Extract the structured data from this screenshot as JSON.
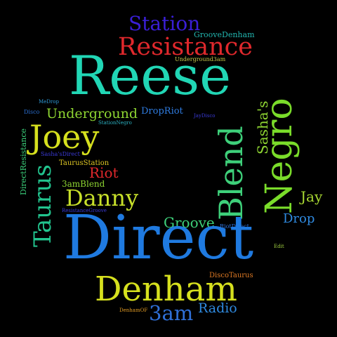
{
  "words": [
    {
      "id": "station",
      "text": "Station",
      "color": "#3a1fd6"
    },
    {
      "id": "groovedenham",
      "text": "GrooveDenham",
      "color": "#22b6b0"
    },
    {
      "id": "resistance",
      "text": "Resistance",
      "color": "#e0282c"
    },
    {
      "id": "underground3am",
      "text": "Underground3am",
      "color": "#c8c84a"
    },
    {
      "id": "reese",
      "text": "Reese",
      "color": "#21d6b5"
    },
    {
      "id": "medrop",
      "text": "MeDrop",
      "color": "#2f9ad8"
    },
    {
      "id": "disco",
      "text": "Disco",
      "color": "#2b6fd1"
    },
    {
      "id": "underground",
      "text": "Underground",
      "color": "#8fd632"
    },
    {
      "id": "dropriot",
      "text": "DropRiot",
      "color": "#2f7ce0"
    },
    {
      "id": "jaydisco",
      "text": "JayDisco",
      "color": "#3a3ad6"
    },
    {
      "id": "stationnegro",
      "text": "StationNegro",
      "color": "#2bb0c0"
    },
    {
      "id": "joey",
      "text": "Joey",
      "color": "#d6e01e"
    },
    {
      "id": "directresistance",
      "text": "DirectResistance",
      "color": "#3bd07a"
    },
    {
      "id": "sashasdirect",
      "text": "Sasha'sDirect",
      "color": "#3a3ad6"
    },
    {
      "id": "taurusstation",
      "text": "TaurusStation",
      "color": "#e0c824"
    },
    {
      "id": "riot",
      "text": "Riot",
      "color": "#e0282c"
    },
    {
      "id": "3amblend",
      "text": "3amBlend",
      "color": "#8fd632"
    },
    {
      "id": "danny",
      "text": "Danny",
      "color": "#c8e02a"
    },
    {
      "id": "resistancegroove",
      "text": "ResistanceGroove",
      "color": "#3a3ad6"
    },
    {
      "id": "taurus",
      "text": "Taurus",
      "color": "#22c48e"
    },
    {
      "id": "blend",
      "text": "Blend",
      "color": "#3ed07a"
    },
    {
      "id": "sashas",
      "text": "Sasha's",
      "color": "#8fd632"
    },
    {
      "id": "negro",
      "text": "Negro",
      "color": "#7adc2a"
    },
    {
      "id": "jay",
      "text": "Jay",
      "color": "#a8d832"
    },
    {
      "id": "groove",
      "text": "Groove",
      "color": "#3ed07a"
    },
    {
      "id": "riotdirect",
      "text": "RiotDirect",
      "color": "#2f6fd6"
    },
    {
      "id": "drop",
      "text": "Drop",
      "color": "#2f8ae0"
    },
    {
      "id": "direct",
      "text": "Direct",
      "color": "#1f7ae0"
    },
    {
      "id": "edit",
      "text": "Edit",
      "color": "#a0d040"
    },
    {
      "id": "discotaurus",
      "text": "DiscoTaurus",
      "color": "#e07a24"
    },
    {
      "id": "denham",
      "text": "Denham",
      "color": "#d6e01e"
    },
    {
      "id": "denhamof",
      "text": "DenhamOF",
      "color": "#e09a24"
    },
    {
      "id": "3am",
      "text": "3am",
      "color": "#2f6fd6"
    },
    {
      "id": "radio",
      "text": "Radio",
      "color": "#2f8ae0"
    }
  ]
}
